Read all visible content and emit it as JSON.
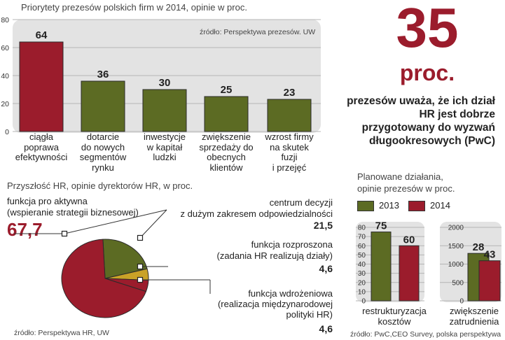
{
  "chart_data": [
    {
      "type": "bar",
      "title": "Priorytety prezesów polskich firm w 2014, opinie w proc.",
      "source": "źródło: Perspektywa prezesów. UW",
      "categories": [
        "ciągła poprawa efektywności",
        "dotarcie do nowych segmentów rynku",
        "inwestycje w kapitał ludzki",
        "zwiększenie sprzedaży do obecnych klientów",
        "wzrost firmy na skutek fuzji i przejęć"
      ],
      "category_lines": [
        [
          "ciągła",
          "poprawa",
          "efektywności"
        ],
        [
          "dotarcie",
          "do nowych",
          "segmentów",
          "rynku"
        ],
        [
          "inwestycje",
          "w kapitał",
          "ludzki"
        ],
        [
          "zwiększenie",
          "sprzedaży do",
          "obecnych",
          "klientów"
        ],
        [
          "wzrost firmy",
          "na skutek",
          "fuzji",
          "i przejęć"
        ]
      ],
      "values": [
        64,
        36,
        30,
        25,
        23
      ],
      "value_labels": [
        "64",
        "36",
        "30",
        "25",
        "23"
      ],
      "yticks": [
        "0",
        "20",
        "40",
        "60",
        "80"
      ],
      "ylim": [
        0,
        80
      ],
      "colors": {
        "highlight": "#9b1c2c",
        "bar": "#5c6b23"
      }
    },
    {
      "type": "pie",
      "title": "Przyszłość HR, opinie dyrektorów HR, w proc.",
      "source": "źródło: Perspektywa HR,  UW",
      "slices": [
        {
          "name": "funkcja pro aktywna (wspieranie strategii biznesowej)",
          "label_lines": [
            "funkcja pro aktywna",
            "(wspieranie strategii biznesowej)"
          ],
          "value": 67.7,
          "value_label": "67,7",
          "color": "#9b1c2c"
        },
        {
          "name": "centrum decyzji z dużym zakresem odpowiedzialności",
          "label_lines": [
            "centrum decyzji",
            "z dużym zakresem odpowiedzialności"
          ],
          "value": 21.5,
          "value_label": "21,5",
          "color": "#5c6b23"
        },
        {
          "name": "funkcja rozproszona (zadania HR realizują działy)",
          "label_lines": [
            "funkcja rozproszona",
            "(zadania HR realizują  działy)"
          ],
          "value": 4.6,
          "value_label": "4,6",
          "color": "#c9a227"
        },
        {
          "name": "funkcja wdrożeniowa (realizacja międzynarodowej polityki HR)",
          "label_lines": [
            "funkcja wdrożeniowa",
            "(realizacja międzynarodowej",
            "polityki HR)"
          ],
          "value": 4.6,
          "value_label": "4,6",
          "color": "#9b1c2c"
        }
      ]
    },
    {
      "type": "bar",
      "title": "Planowane działania, opinie prezesów w proc.",
      "title_lines": [
        "Planowane działania,",
        "opinie prezesów w proc."
      ],
      "source": "źródło: PwC,CEO Survey, polska perspektywa",
      "legend": [
        {
          "name": "2013",
          "color": "#5c6b23"
        },
        {
          "name": "2014",
          "color": "#9b1c2c"
        }
      ],
      "panels": [
        {
          "category_lines": [
            "restrukturyzacja",
            "kosztów"
          ],
          "yticks": [
            "0",
            "10",
            "20",
            "30",
            "40",
            "50",
            "60",
            "70",
            "80"
          ],
          "ylim": [
            0,
            80
          ],
          "values": {
            "2013": 75,
            "2014": 60
          },
          "value_labels": {
            "2013": "75",
            "2014": "60"
          }
        },
        {
          "category_lines": [
            "zwiększenie",
            "zatrudnienia"
          ],
          "yticks": [
            "0",
            "500",
            "1000",
            "1500",
            "2000"
          ],
          "ylim": [
            0,
            2000
          ],
          "values": {
            "2013": 28,
            "2014": 43
          },
          "value_labels": {
            "2013": "28",
            "2014": "43"
          }
        }
      ]
    }
  ],
  "headline": {
    "number": "35",
    "unit": "proc.",
    "text_lines": [
      "prezesów uważa, że ich dział",
      "HR jest dobrze",
      "przygotowany do wyzwań",
      "długookresowych (PwC)"
    ]
  }
}
